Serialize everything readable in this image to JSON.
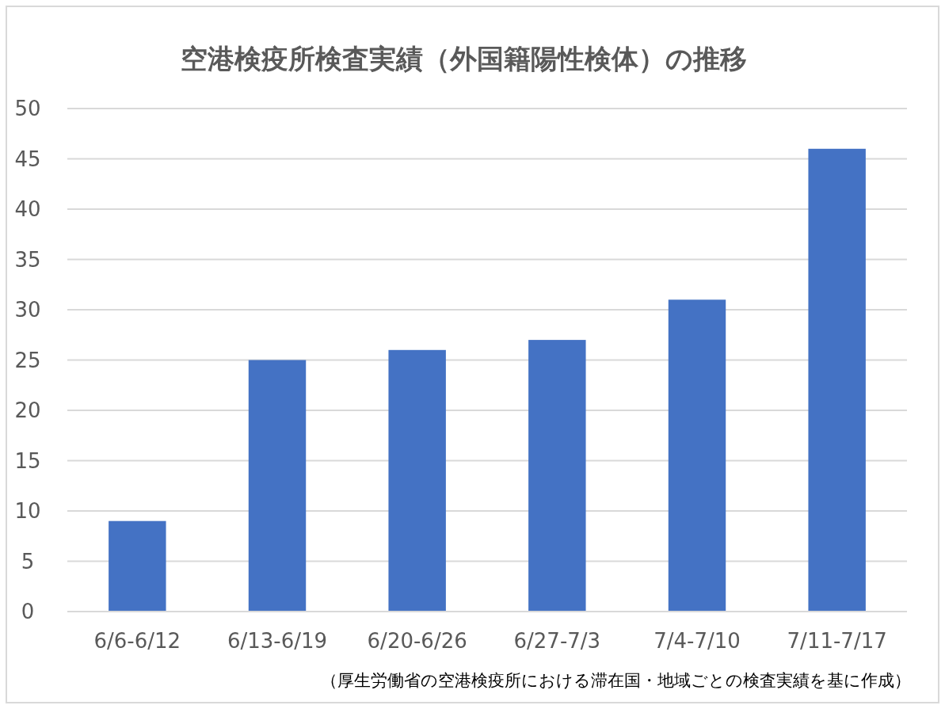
{
  "chart_data": {
    "type": "bar",
    "title": "空港検疫所検査実績（外国籍陽性検体）の推移",
    "categories": [
      "6/6-6/12",
      "6/13-6/19",
      "6/20-6/26",
      "6/27-7/3",
      "7/4-7/10",
      "7/11-7/17"
    ],
    "values": [
      9,
      25,
      26,
      27,
      31,
      46
    ],
    "color": "#4472c4",
    "ylim": [
      0,
      50
    ],
    "yticks": [
      0,
      5,
      10,
      15,
      20,
      25,
      30,
      35,
      40,
      45,
      50
    ],
    "grid": "y",
    "annotations": [
      "（厚生労働省の空港検疫所における滞在国・地域ごとの検査実績を基に作成）"
    ]
  }
}
